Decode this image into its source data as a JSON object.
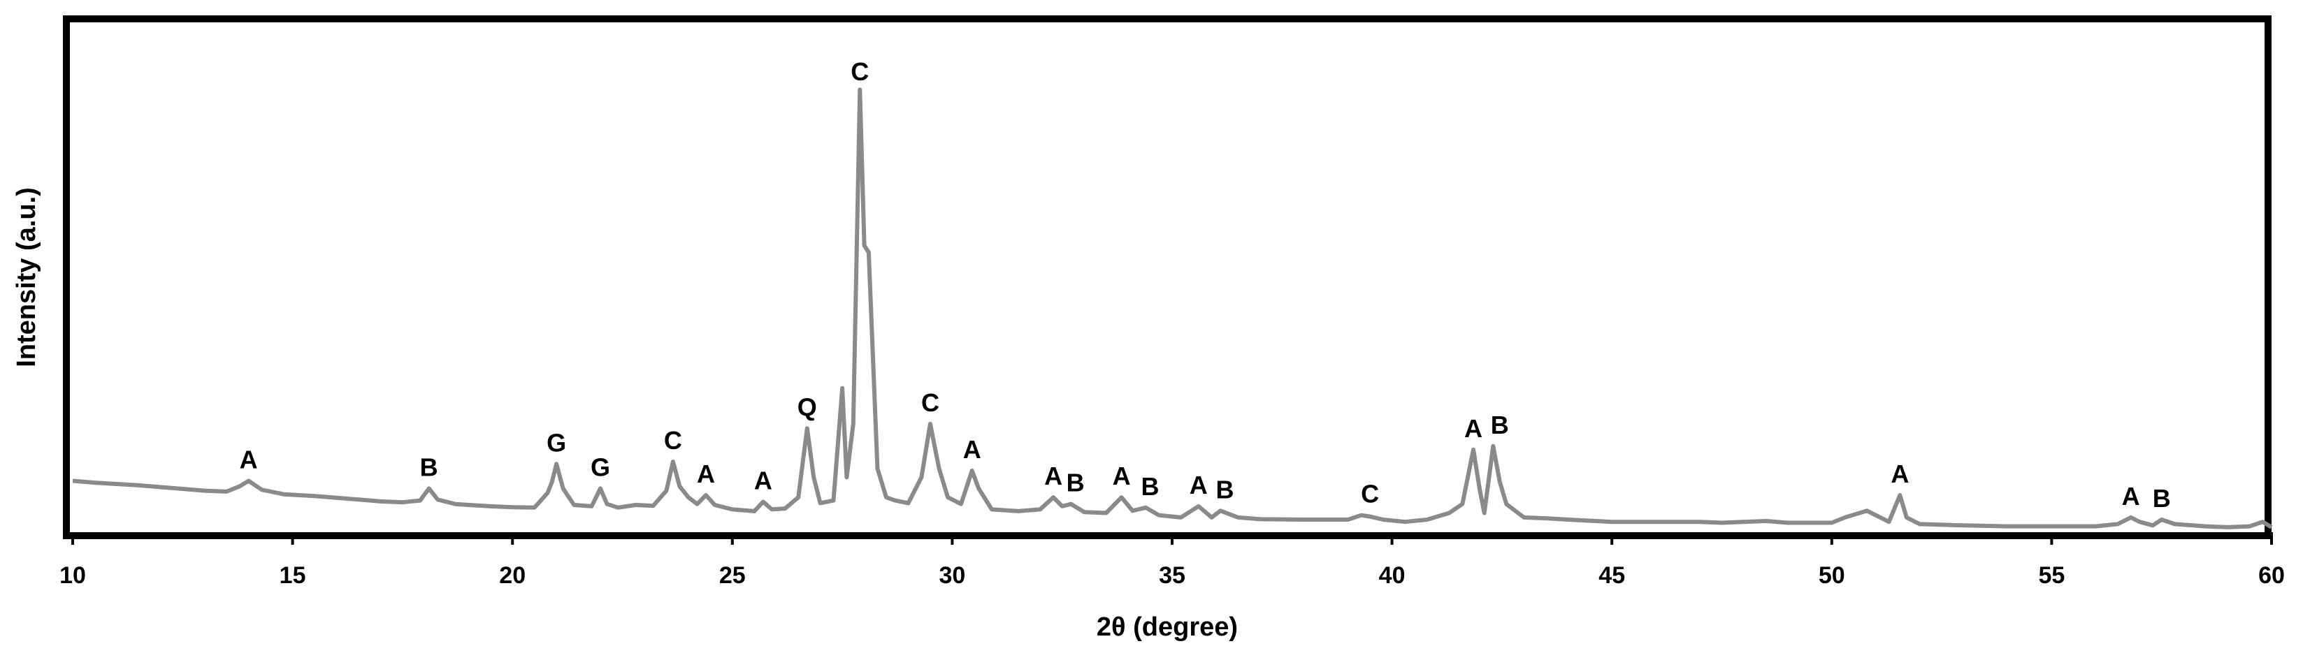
{
  "chart_data": {
    "type": "line",
    "xlabel": "2θ (degree)",
    "ylabel": "Intensity (a.u.)",
    "xlim": [
      10,
      60
    ],
    "ylim": [
      0,
      1000
    ],
    "x_ticks": [
      10,
      15,
      20,
      25,
      30,
      35,
      40,
      45,
      50,
      55,
      60
    ],
    "x_tick_labels": [
      "10",
      "15",
      "20",
      "25",
      "30",
      "35",
      "40",
      "45",
      "50",
      "55",
      "60"
    ],
    "y_ticks_shown": false,
    "grid": false,
    "legend": "none",
    "line_color": "#8a8a8a",
    "series": [
      {
        "x": [
          10.0,
          10.5,
          11.0,
          11.5,
          12.0,
          12.5,
          13.0,
          13.5,
          13.8,
          14.0,
          14.3,
          14.8,
          15.5,
          16.0,
          16.5,
          17.0,
          17.5,
          17.9,
          18.1,
          18.3,
          18.7,
          19.0,
          19.5,
          20.0,
          20.5,
          20.8,
          20.9,
          21.0,
          21.15,
          21.4,
          21.8,
          22.0,
          22.15,
          22.4,
          22.8,
          23.2,
          23.5,
          23.65,
          23.8,
          24.0,
          24.2,
          24.4,
          24.6,
          25.0,
          25.5,
          25.7,
          25.9,
          26.2,
          26.5,
          26.7,
          26.85,
          27.0,
          27.3,
          27.5,
          27.6,
          27.75,
          27.9,
          28.0,
          28.1,
          28.3,
          28.5,
          28.7,
          29.0,
          29.3,
          29.5,
          29.7,
          29.9,
          30.2,
          30.45,
          30.6,
          30.9,
          31.5,
          32.0,
          32.3,
          32.5,
          32.7,
          33.0,
          33.5,
          33.85,
          34.1,
          34.4,
          34.7,
          35.2,
          35.6,
          35.9,
          36.1,
          36.5,
          37.0,
          38.0,
          39.0,
          39.3,
          39.5,
          39.8,
          40.3,
          40.8,
          41.3,
          41.6,
          41.85,
          42.0,
          42.1,
          42.3,
          42.45,
          42.6,
          43.0,
          43.5,
          44.0,
          45.0,
          46.0,
          47.0,
          47.5,
          48.0,
          48.5,
          49.0,
          50.0,
          50.3,
          50.8,
          51.3,
          51.55,
          51.7,
          52.0,
          53.0,
          54.0,
          55.0,
          56.0,
          56.5,
          56.8,
          57.0,
          57.3,
          57.5,
          57.8,
          58.5,
          59.0,
          59.5,
          59.8,
          60.0
        ],
        "y": [
          112,
          108,
          105,
          102,
          98,
          94,
          90,
          88,
          100,
          112,
          92,
          82,
          78,
          74,
          70,
          66,
          64,
          68,
          95,
          70,
          60,
          58,
          55,
          53,
          52,
          85,
          110,
          150,
          95,
          58,
          55,
          95,
          60,
          52,
          58,
          56,
          90,
          155,
          100,
          75,
          60,
          80,
          58,
          48,
          44,
          65,
          48,
          50,
          75,
          230,
          120,
          62,
          68,
          320,
          120,
          240,
          990,
          640,
          625,
          140,
          75,
          68,
          62,
          120,
          240,
          140,
          75,
          60,
          135,
          95,
          48,
          44,
          48,
          75,
          55,
          60,
          42,
          40,
          75,
          45,
          52,
          35,
          30,
          55,
          30,
          45,
          30,
          26,
          25,
          25,
          35,
          32,
          25,
          20,
          25,
          40,
          60,
          182,
          90,
          40,
          190,
          110,
          60,
          30,
          28,
          25,
          20,
          20,
          20,
          18,
          20,
          22,
          18,
          18,
          30,
          45,
          20,
          80,
          30,
          15,
          12,
          10,
          10,
          10,
          15,
          30,
          20,
          12,
          25,
          15,
          10,
          8,
          10,
          20,
          8
        ]
      }
    ],
    "peak_labels": [
      {
        "x": 14.0,
        "y": 112,
        "text": "A"
      },
      {
        "x": 18.1,
        "y": 95,
        "text": "B"
      },
      {
        "x": 21.0,
        "y": 150,
        "text": "G"
      },
      {
        "x": 22.0,
        "y": 95,
        "text": "G"
      },
      {
        "x": 23.65,
        "y": 155,
        "text": "C"
      },
      {
        "x": 24.4,
        "y": 80,
        "text": "A"
      },
      {
        "x": 25.7,
        "y": 65,
        "text": "A"
      },
      {
        "x": 26.7,
        "y": 230,
        "text": "Q"
      },
      {
        "x": 27.9,
        "y": 990,
        "text": "C"
      },
      {
        "x": 29.5,
        "y": 240,
        "text": "C"
      },
      {
        "x": 30.45,
        "y": 135,
        "text": "A"
      },
      {
        "x": 32.3,
        "y": 75,
        "text": "A"
      },
      {
        "x": 32.8,
        "y": 60,
        "text": "B"
      },
      {
        "x": 33.85,
        "y": 75,
        "text": "A"
      },
      {
        "x": 34.5,
        "y": 52,
        "text": "B"
      },
      {
        "x": 35.6,
        "y": 55,
        "text": "A"
      },
      {
        "x": 36.2,
        "y": 45,
        "text": "B"
      },
      {
        "x": 39.5,
        "y": 35,
        "text": "C"
      },
      {
        "x": 41.85,
        "y": 182,
        "text": "A"
      },
      {
        "x": 42.45,
        "y": 190,
        "text": "B"
      },
      {
        "x": 51.55,
        "y": 80,
        "text": "A"
      },
      {
        "x": 56.8,
        "y": 30,
        "text": "A"
      },
      {
        "x": 57.5,
        "y": 25,
        "text": "B"
      }
    ]
  }
}
